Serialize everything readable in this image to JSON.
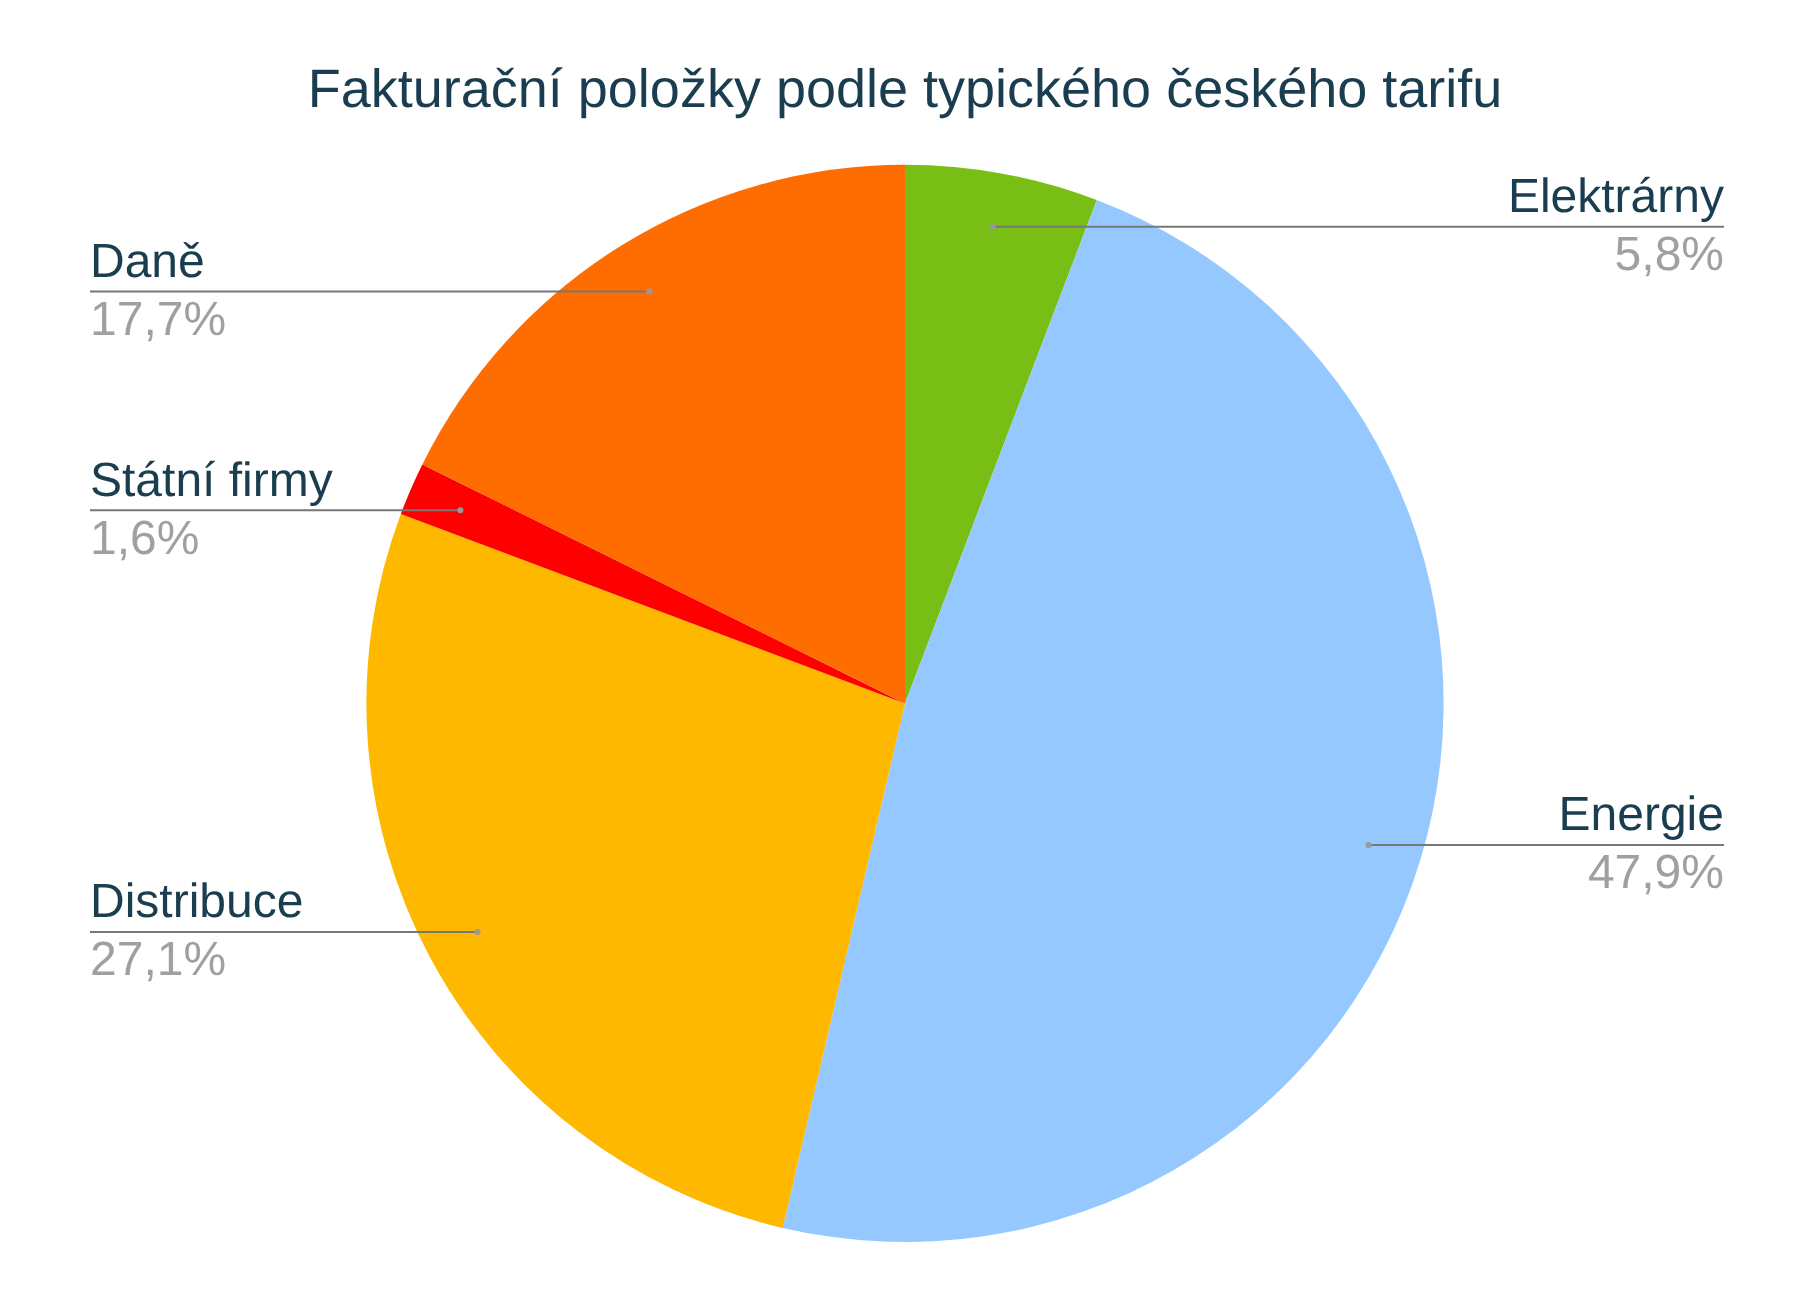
{
  "chart_data": {
    "type": "pie",
    "title": "Fakturační položky podle typického českého tarifu",
    "categories": [
      "Elektrárny",
      "Energie",
      "Distribuce",
      "Státní firmy",
      "Daně"
    ],
    "values": [
      5.8,
      47.9,
      27.1,
      1.6,
      17.7
    ],
    "value_labels": [
      "5,8%",
      "47,9%",
      "27,1%",
      "1,6%",
      "17,7%"
    ],
    "colors": [
      "#78be14",
      "#94c8ff",
      "#ffb800",
      "#ff0000",
      "#ff6d00"
    ],
    "legend": false
  }
}
